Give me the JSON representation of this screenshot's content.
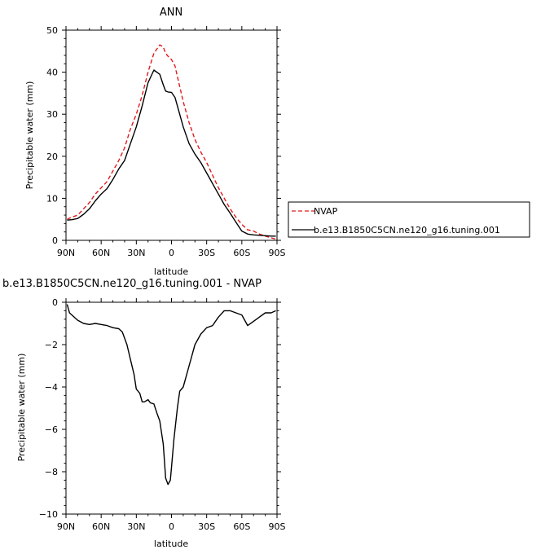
{
  "colors": {
    "nvap": "#e41a1c",
    "model": "#000000"
  },
  "chart_data": [
    {
      "type": "line",
      "title": "ANN",
      "xlabel": "latitude",
      "ylabel": "Precipitable water (mm)",
      "xlim": [
        90,
        -90
      ],
      "ylim": [
        0,
        50
      ],
      "xticks": [
        90,
        60,
        30,
        0,
        -30,
        -60,
        -90
      ],
      "xtick_labels": [
        "90N",
        "60N",
        "30N",
        "0",
        "30S",
        "60S",
        "90S"
      ],
      "yticks": [
        0,
        10,
        20,
        30,
        40,
        50
      ],
      "ytick_labels": [
        "0",
        "10",
        "20",
        "30",
        "40",
        "50"
      ],
      "legend": {
        "placement": "right",
        "entries": [
          "NVAP",
          "b.e13.B1850C5CN.ne120_g16.tuning.001"
        ]
      },
      "series": [
        {
          "name": "NVAP",
          "style": "dashed",
          "color": "#e41a1c",
          "x": [
            89,
            85,
            80,
            75,
            70,
            65,
            60,
            55,
            50,
            45,
            40,
            35,
            30,
            25,
            20,
            15,
            10,
            7,
            5,
            3,
            0,
            -3,
            -5,
            -10,
            -15,
            -20,
            -25,
            -30,
            -35,
            -40,
            -45,
            -50,
            -55,
            -60,
            -65,
            -70,
            -75,
            -80,
            -85,
            -89
          ],
          "y": [
            5,
            5.5,
            6,
            7.5,
            9,
            11,
            12.5,
            14,
            16.5,
            19,
            22,
            26.5,
            30,
            34.5,
            40,
            44.5,
            46.5,
            46,
            44.5,
            43.8,
            43,
            41.5,
            39,
            33,
            28,
            24,
            21,
            18.5,
            15.5,
            12.5,
            10,
            7.5,
            5.5,
            3.8,
            2.5,
            2.2,
            1.5,
            1.0,
            0.6,
            0.3
          ]
        },
        {
          "name": "b.e13.B1850C5CN.ne120_g16.tuning.001",
          "style": "solid",
          "color": "#000000",
          "x": [
            89,
            85,
            80,
            75,
            70,
            65,
            60,
            55,
            50,
            45,
            40,
            35,
            30,
            25,
            20,
            15,
            10,
            7,
            5,
            3,
            0,
            -3,
            -5,
            -10,
            -15,
            -20,
            -25,
            -30,
            -35,
            -40,
            -45,
            -50,
            -55,
            -60,
            -65,
            -70,
            -75,
            -80,
            -85,
            -89
          ],
          "y": [
            4.8,
            4.9,
            5.2,
            6.2,
            7.5,
            9.4,
            11,
            12.3,
            14.5,
            17,
            19,
            23,
            27,
            32,
            37.5,
            40.5,
            39.5,
            37,
            35.5,
            35.3,
            35.2,
            34,
            32,
            27,
            23,
            20.5,
            18.5,
            16,
            13.5,
            11,
            8.5,
            6.5,
            4.3,
            2.2,
            1.5,
            1.3,
            1.2,
            1.1,
            1.0,
            1.0
          ]
        }
      ]
    },
    {
      "type": "line",
      "title": "b.e13.B1850C5CN.ne120_g16.tuning.001  -  NVAP",
      "xlabel": "latitude",
      "ylabel": "Precipitable water (mm)",
      "xlim": [
        90,
        -90
      ],
      "ylim": [
        -10,
        0
      ],
      "xticks": [
        90,
        60,
        30,
        0,
        -30,
        -60,
        -90
      ],
      "xtick_labels": [
        "90N",
        "60N",
        "30N",
        "0",
        "30S",
        "60S",
        "90S"
      ],
      "yticks": [
        -10,
        -8,
        -6,
        -4,
        -2,
        0
      ],
      "ytick_labels": [
        "−10",
        "−8",
        "−6",
        "−4",
        "−2",
        "0"
      ],
      "series": [
        {
          "style": "solid",
          "color": "#000000",
          "x": [
            89,
            87,
            85,
            80,
            75,
            70,
            65,
            60,
            55,
            50,
            45,
            42,
            38,
            35,
            32,
            30,
            27,
            25,
            23,
            20,
            18,
            15,
            12,
            10,
            7,
            5,
            3,
            1,
            0,
            -2,
            -5,
            -7,
            -10,
            -12,
            -15,
            -18,
            -20,
            -25,
            -30,
            -35,
            -40,
            -45,
            -50,
            -55,
            -60,
            -65,
            -70,
            -75,
            -80,
            -85,
            -89
          ],
          "y": [
            -0.1,
            -0.5,
            -0.6,
            -0.85,
            -1.0,
            -1.05,
            -1.0,
            -1.05,
            -1.1,
            -1.2,
            -1.25,
            -1.4,
            -2.0,
            -2.7,
            -3.4,
            -4.1,
            -4.3,
            -4.7,
            -4.7,
            -4.6,
            -4.75,
            -4.8,
            -5.3,
            -5.6,
            -6.7,
            -8.3,
            -8.6,
            -8.4,
            -7.8,
            -6.5,
            -5.0,
            -4.2,
            -4.0,
            -3.6,
            -3.0,
            -2.4,
            -2.0,
            -1.5,
            -1.2,
            -1.1,
            -0.7,
            -0.4,
            -0.4,
            -0.5,
            -0.6,
            -1.1,
            -0.9,
            -0.7,
            -0.5,
            -0.5,
            -0.4
          ]
        }
      ]
    }
  ]
}
